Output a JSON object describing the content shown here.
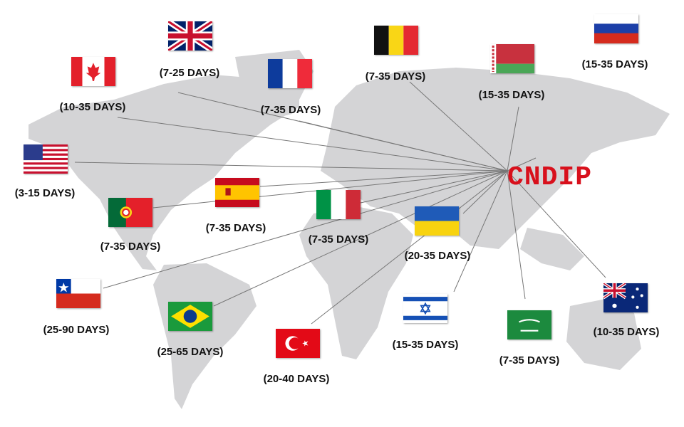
{
  "hub": {
    "label": "CNDIP",
    "color": "#d8101c"
  },
  "countries": [
    {
      "flag": "united-kingdom-flag",
      "label": "(7-25 DAYS)"
    },
    {
      "flag": "canada-flag",
      "label": "(10-35 DAYS)"
    },
    {
      "flag": "france-flag",
      "label": "(7-35 DAYS)"
    },
    {
      "flag": "belgium-flag",
      "label": "(7-35 DAYS)"
    },
    {
      "flag": "belarus-flag",
      "label": "(15-35 DAYS)"
    },
    {
      "flag": "russia-flag",
      "label": "(15-35 DAYS)"
    },
    {
      "flag": "usa-flag",
      "label": "(3-15 DAYS)"
    },
    {
      "flag": "spain-flag",
      "label": "(7-35 DAYS)"
    },
    {
      "flag": "portugal-flag",
      "label": "(7-35 DAYS)"
    },
    {
      "flag": "italy-flag",
      "label": "(7-35 DAYS)"
    },
    {
      "flag": "ukraine-flag",
      "label": "(20-35 DAYS)"
    },
    {
      "flag": "chile-flag",
      "label": "(25-90 DAYS)"
    },
    {
      "flag": "brazil-flag",
      "label": "(25-65 DAYS)"
    },
    {
      "flag": "turkey-flag",
      "label": "(20-40 DAYS)"
    },
    {
      "flag": "israel-flag",
      "label": "(15-35 DAYS)"
    },
    {
      "flag": "saudi-arabia-flag",
      "label": "(7-35 DAYS)"
    },
    {
      "flag": "australia-flag",
      "label": "(10-35 DAYS)"
    }
  ]
}
